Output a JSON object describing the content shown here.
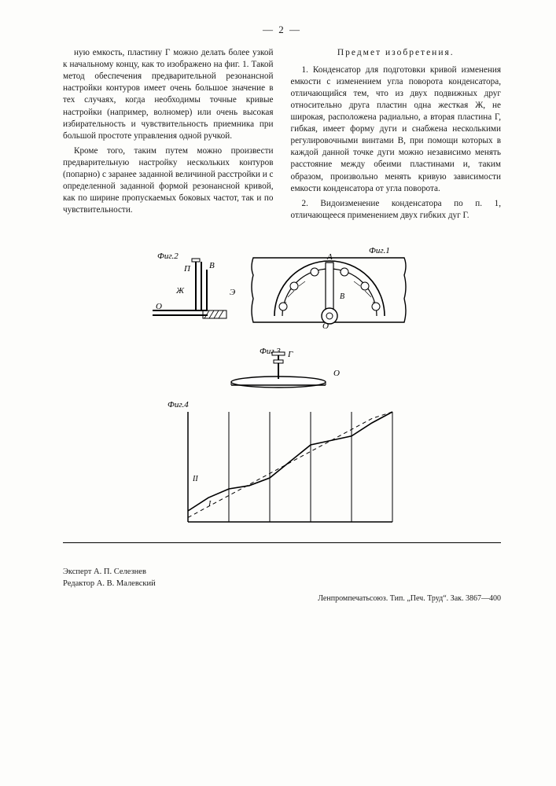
{
  "page_number": "— 2 —",
  "left_column": {
    "p1": "ную емкость, пластину Г можно делать более узкой к начальному концу, как то изображено на фиг. 1. Такой метод обеспечения предварительной резонансной настройки контуров имеет очень большое значение в тех случаях, когда необходимы точные кривые настройки (например, волномер) или очень высокая избирательность и чувствительность приемника при большой простоте управления одной ручкой.",
    "p2": "Кроме того, таким путем можно произвести предварительную настройку нескольких контуров (попарно) с заранее заданной величиной расстройки и с определенной заданной формой резонансной кривой, как по ширине пропускаемых боковых частот, так и по чувствительности."
  },
  "right_column": {
    "title": "Предмет изобретения.",
    "p1": "1. Конденсатор для подготовки кривой изменения емкости с изменением угла поворота конденсатора, отличающийся тем, что из двух подвижных друг относительно друга пластин одна жесткая Ж, не широкая, расположена радиально, а вторая пластина Г, гибкая, имеет форму дуги и снабжена несколькими регулировочными винтами В, при помощи которых в каждой данной точке дуги можно независимо менять расстояние между обеими пластинами и, таким образом, произвольно менять кривую зависимости емкости конденсатора от угла поворота.",
    "p2": "2. Видоизменение конденсатора по п. 1, отличающееся применением двух гибких дуг Г."
  },
  "figures": {
    "fig1_label": "Фиг.1",
    "fig2_label": "Фиг.2",
    "fig3_label": "Фиг.3",
    "fig4_label": "Фиг.4",
    "letter_A": "А",
    "letter_B": "В",
    "letter_G": "Г",
    "letter_Zh": "Ж",
    "letter_O": "О",
    "letter_P": "П",
    "letter_Eh": "Э"
  },
  "graph": {
    "type": "line",
    "background_color": "#ffffff",
    "axis_color": "#000000",
    "grid_color": "#000000",
    "curve1_color": "#000000",
    "curve2_color": "#000000",
    "line_width": 1.2,
    "xlim": [
      0,
      100
    ],
    "ylim": [
      0,
      100
    ],
    "grid_x": [
      0,
      20,
      40,
      60,
      80,
      100
    ],
    "series": {
      "solid": [
        [
          0,
          10
        ],
        [
          10,
          22
        ],
        [
          20,
          30
        ],
        [
          30,
          33
        ],
        [
          40,
          40
        ],
        [
          50,
          55
        ],
        [
          60,
          70
        ],
        [
          70,
          74
        ],
        [
          80,
          78
        ],
        [
          90,
          90
        ],
        [
          100,
          100
        ]
      ],
      "dashed": [
        [
          0,
          4
        ],
        [
          10,
          14
        ],
        [
          20,
          24
        ],
        [
          30,
          34
        ],
        [
          40,
          44
        ],
        [
          50,
          54
        ],
        [
          60,
          64
        ],
        [
          70,
          74
        ],
        [
          80,
          84
        ],
        [
          90,
          94
        ],
        [
          100,
          100
        ]
      ]
    },
    "label_II": "II",
    "label_I": "I"
  },
  "credits": {
    "expert": "Эксперт А. П. Селезнев",
    "editor": "Редактор А. В. Малевский"
  },
  "imprint": "Ленпромпечатьсоюз. Тип. „Печ. Труд“. Зак. 3867—400"
}
